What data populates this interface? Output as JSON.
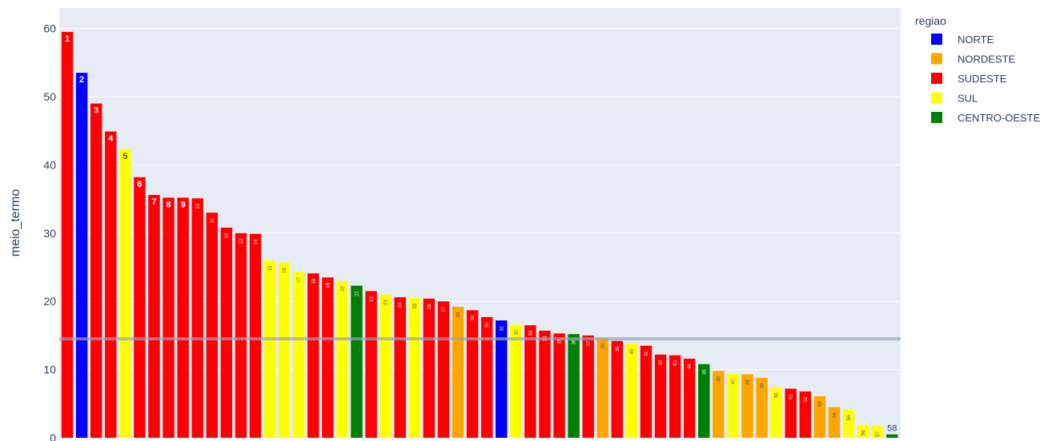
{
  "chart_data": {
    "type": "bar",
    "ylabel": "meio_termo",
    "ylim": [
      0,
      63
    ],
    "yticks": [
      0,
      10,
      20,
      30,
      40,
      50,
      60
    ],
    "grid": true,
    "reference_line": 14.5,
    "legend": {
      "title": "regiao",
      "placement": "top-right",
      "entries": [
        {
          "name": "NORTE",
          "color": "#0000ff"
        },
        {
          "name": "NORDESTE",
          "color": "#ffa500"
        },
        {
          "name": "SUDESTE",
          "color": "#ff0000"
        },
        {
          "name": "SUL",
          "color": "#ffff00"
        },
        {
          "name": "CENTRO-OESTE",
          "color": "#008000"
        }
      ]
    },
    "bars": [
      {
        "label": "1",
        "value": 59.5,
        "region": "SUDESTE"
      },
      {
        "label": "2",
        "value": 53.5,
        "region": "NORTE"
      },
      {
        "label": "3",
        "value": 49.0,
        "region": "SUDESTE"
      },
      {
        "label": "4",
        "value": 44.9,
        "region": "SUDESTE"
      },
      {
        "label": "5",
        "value": 42.3,
        "region": "SUL"
      },
      {
        "label": "6",
        "value": 38.2,
        "region": "SUDESTE"
      },
      {
        "label": "7",
        "value": 35.6,
        "region": "SUDESTE"
      },
      {
        "label": "8",
        "value": 35.2,
        "region": "SUDESTE"
      },
      {
        "label": "9",
        "value": 35.2,
        "region": "SUDESTE"
      },
      {
        "label": "10",
        "value": 35.1,
        "region": "SUDESTE"
      },
      {
        "label": "11",
        "value": 33.0,
        "region": "SUDESTE"
      },
      {
        "label": "12",
        "value": 30.8,
        "region": "SUDESTE"
      },
      {
        "label": "13",
        "value": 30.0,
        "region": "SUDESTE"
      },
      {
        "label": "14",
        "value": 29.9,
        "region": "SUDESTE"
      },
      {
        "label": "15",
        "value": 26.0,
        "region": "SUL"
      },
      {
        "label": "16",
        "value": 25.7,
        "region": "SUL"
      },
      {
        "label": "17",
        "value": 24.3,
        "region": "SUL"
      },
      {
        "label": "18",
        "value": 24.1,
        "region": "SUDESTE"
      },
      {
        "label": "19",
        "value": 23.5,
        "region": "SUDESTE"
      },
      {
        "label": "20",
        "value": 23.0,
        "region": "SUL"
      },
      {
        "label": "21",
        "value": 22.3,
        "region": "CENTRO-OESTE"
      },
      {
        "label": "22",
        "value": 21.5,
        "region": "SUDESTE"
      },
      {
        "label": "23",
        "value": 21.0,
        "region": "SUL"
      },
      {
        "label": "24",
        "value": 20.6,
        "region": "SUDESTE"
      },
      {
        "label": "25",
        "value": 20.5,
        "region": "SUL"
      },
      {
        "label": "26",
        "value": 20.4,
        "region": "SUDESTE"
      },
      {
        "label": "27",
        "value": 20.0,
        "region": "SUDESTE"
      },
      {
        "label": "28",
        "value": 19.2,
        "region": "NORDESTE"
      },
      {
        "label": "29",
        "value": 18.7,
        "region": "SUDESTE"
      },
      {
        "label": "30",
        "value": 17.7,
        "region": "SUDESTE"
      },
      {
        "label": "31",
        "value": 17.2,
        "region": "NORTE"
      },
      {
        "label": "32",
        "value": 16.6,
        "region": "SUL"
      },
      {
        "label": "33",
        "value": 16.5,
        "region": "SUDESTE"
      },
      {
        "label": "34",
        "value": 15.7,
        "region": "SUDESTE"
      },
      {
        "label": "35",
        "value": 15.3,
        "region": "SUDESTE"
      },
      {
        "label": "36",
        "value": 15.2,
        "region": "CENTRO-OESTE"
      },
      {
        "label": "37",
        "value": 15.0,
        "region": "SUDESTE"
      },
      {
        "label": "38",
        "value": 14.6,
        "region": "NORDESTE"
      },
      {
        "label": "39",
        "value": 14.2,
        "region": "SUDESTE"
      },
      {
        "label": "40",
        "value": 13.8,
        "region": "SUL"
      },
      {
        "label": "41",
        "value": 13.5,
        "region": "SUDESTE"
      },
      {
        "label": "42",
        "value": 12.2,
        "region": "SUDESTE"
      },
      {
        "label": "43",
        "value": 12.1,
        "region": "SUDESTE"
      },
      {
        "label": "44",
        "value": 11.6,
        "region": "SUDESTE"
      },
      {
        "label": "45",
        "value": 10.8,
        "region": "CENTRO-OESTE"
      },
      {
        "label": "46",
        "value": 9.8,
        "region": "NORDESTE"
      },
      {
        "label": "47",
        "value": 9.4,
        "region": "SUL"
      },
      {
        "label": "48",
        "value": 9.3,
        "region": "NORDESTE"
      },
      {
        "label": "49",
        "value": 8.8,
        "region": "NORDESTE"
      },
      {
        "label": "50",
        "value": 7.4,
        "region": "SUL"
      },
      {
        "label": "51",
        "value": 7.2,
        "region": "SUDESTE"
      },
      {
        "label": "52",
        "value": 6.8,
        "region": "SUDESTE"
      },
      {
        "label": "53",
        "value": 6.1,
        "region": "NORDESTE"
      },
      {
        "label": "54",
        "value": 4.5,
        "region": "NORDESTE"
      },
      {
        "label": "55",
        "value": 4.1,
        "region": "SUL"
      },
      {
        "label": "56",
        "value": 1.9,
        "region": "SUL"
      },
      {
        "label": "57",
        "value": 1.7,
        "region": "SUL"
      },
      {
        "label": "58",
        "value": 0.5,
        "region": "CENTRO-OESTE"
      }
    ]
  }
}
